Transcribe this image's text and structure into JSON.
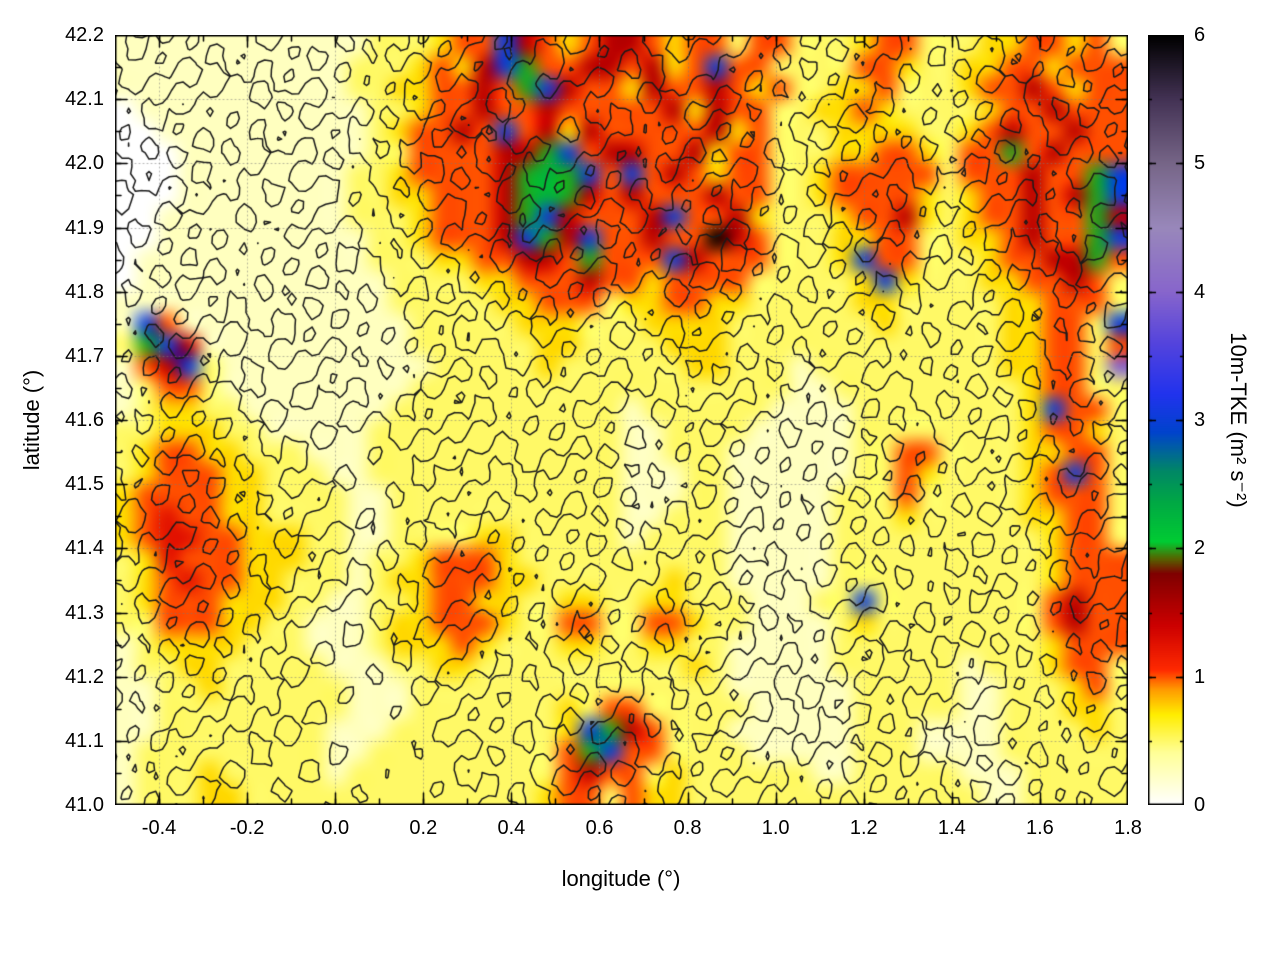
{
  "chart_data": {
    "type": "heatmap",
    "title": "",
    "xlabel": "longitude (°)",
    "ylabel": "latitude (°)",
    "x_range": [
      -0.5,
      1.8
    ],
    "y_range": [
      41.0,
      42.2
    ],
    "grid": "dotted-front",
    "x_ticks": {
      "values": [
        -0.4,
        -0.2,
        0.0,
        0.2,
        0.4,
        0.6,
        0.8,
        1.0,
        1.2,
        1.4,
        1.6,
        1.8
      ],
      "labels": [
        "-0.4",
        "-0.2",
        "0.0",
        "0.2",
        "0.4",
        "0.6",
        "0.8",
        "1.0",
        "1.2",
        "1.4",
        "1.6",
        "1.8"
      ],
      "minor_step": 0.1
    },
    "y_ticks": {
      "values": [
        41.0,
        41.1,
        41.2,
        41.3,
        41.4,
        41.5,
        41.6,
        41.7,
        41.8,
        41.9,
        42.0,
        42.1,
        42.2
      ],
      "labels": [
        "41.0",
        "41.1",
        "41.2",
        "41.3",
        "41.4",
        "41.5",
        "41.6",
        "41.7",
        "41.8",
        "41.9",
        "42.0",
        "42.1",
        "42.2"
      ],
      "minor_step": 0.05
    },
    "colorbar": {
      "label": "10m-TKE (m² s⁻²)",
      "min": 0,
      "max": 6,
      "tick_values": [
        0,
        1,
        2,
        3,
        4,
        5,
        6
      ],
      "tick_labels": [
        "0",
        "1",
        "2",
        "3",
        "4",
        "5",
        "6"
      ],
      "minor_step": 0.5,
      "stops": [
        [
          0.0,
          "#ffffff"
        ],
        [
          0.4,
          "#ffff99"
        ],
        [
          0.7,
          "#ffee00"
        ],
        [
          0.9,
          "#ff9900"
        ],
        [
          1.05,
          "#ff2a00"
        ],
        [
          1.4,
          "#cc0000"
        ],
        [
          1.8,
          "#800000"
        ],
        [
          1.92,
          "#556600"
        ],
        [
          2.05,
          "#00cc33"
        ],
        [
          2.35,
          "#00aa44"
        ],
        [
          2.6,
          "#008866"
        ],
        [
          2.9,
          "#0044cc"
        ],
        [
          3.2,
          "#2233ee"
        ],
        [
          3.6,
          "#5544dd"
        ],
        [
          4.0,
          "#8866cc"
        ],
        [
          4.5,
          "#9988bb"
        ],
        [
          5.0,
          "#776688"
        ],
        [
          5.5,
          "#443355"
        ],
        [
          6.0,
          "#000000"
        ]
      ]
    },
    "value_chars": "0123456789abcdefghijklmno",
    "value_scale": 0.25,
    "tke_grid": [
      "11111111111122234 4c643466434424422234422233 44342",
      "111111111112223436c844664634c4422224432233443444",
      "111111111112233446 48c64436446434223342223446 4344",
      "011111111111223446446444446364422334322223446444",
      "0011111111112344 64c4636444446342223333223464 4644",
      "00011111111122444466 8c466446344222334432448 46444",
      "000111111112234444689 8c4c46434422344444244 46448c",
      "000111111112233444689864644464422344443234 46468c",
      "0011111111122234446 8c64446c446322234463234 464486",
      "00111111111122344 46c86c44644o6422233442233 46448c",
      "0111111111112223344664844 4c644422 23c442223446684",
      "0111111111111222233444644344442222 23c32223344642",
      "111111111111122222334442334433222223322222334442",
      "1c41111111111122222333222333322222223222 2233442c",
      "28c6111111111122222233222233322222222222 22334424",
      "146c211111111112222232222223322212222222 2233442g",
      "124421111111112222222222222222221122222222234422",
      "12332211111112222222222212222221111222222223c442",
      "223332211111222222222222112222111112222222234432",
      "234433222111222222222222112221111112244222233442",
      "2344433222112222222222221112211111122432 22234c42",
      "344443322221122222222222111221111122242222234442",
      "345443322221122222222222112221111122232222233442",
      "345544333221122223322222122221111122222222223442",
      "235444333221223444322222222221111122222222223444",
      "234544332221233444332222223221111122222222223444",
      "2344433322112234433223322332221112 2c222222224644",
      "224443322111233444322442244322111123222222224644",
      "123333222111233343222332233221111122222222223444",
      "122332222211122332222222222321111122222212223442",
      "112232222221112222222222222221111112222211222342",
      "112222222221112222222324422222111112222211222332",
      "11222222221112222222 23c86422211111122211 11222232",
      "12222222221122222222 248c4422221111122211 11222222",
      "122232222212222222222464423222222112222211122222",
      "122233222222222222223442433222222222222221122222"
    ],
    "contour_levels": [
      0.34,
      0.44,
      0.54,
      0.64,
      0.74,
      0.84
    ],
    "elevation_grid": [
      [
        0.55,
        0.6,
        0.62,
        0.6,
        0.7,
        0.85,
        0.8,
        0.88,
        0.82,
        0.75,
        0.72,
        0.8,
        0.85
      ],
      [
        0.5,
        0.52,
        0.48,
        0.55,
        0.75,
        0.9,
        0.85,
        0.8,
        0.78,
        0.7,
        0.68,
        0.75,
        0.82
      ],
      [
        0.45,
        0.42,
        0.4,
        0.5,
        0.65,
        0.8,
        0.75,
        0.72,
        0.7,
        0.62,
        0.6,
        0.68,
        0.75
      ],
      [
        0.4,
        0.38,
        0.36,
        0.42,
        0.5,
        0.6,
        0.62,
        0.6,
        0.58,
        0.52,
        0.55,
        0.6,
        0.65
      ],
      [
        0.38,
        0.35,
        0.33,
        0.36,
        0.38,
        0.42,
        0.45,
        0.48,
        0.45,
        0.42,
        0.48,
        0.52,
        0.55
      ],
      [
        0.42,
        0.38,
        0.34,
        0.3,
        0.32,
        0.36,
        0.38,
        0.4,
        0.38,
        0.36,
        0.42,
        0.46,
        0.5
      ],
      [
        0.45,
        0.42,
        0.36,
        0.32,
        0.35,
        0.38,
        0.4,
        0.45,
        0.42,
        0.38,
        0.36,
        0.42,
        0.46
      ],
      [
        0.42,
        0.4,
        0.35,
        0.3,
        0.33,
        0.4,
        0.5,
        0.55,
        0.5,
        0.45,
        0.4,
        0.38,
        0.42
      ],
      [
        0.4,
        0.36,
        0.32,
        0.28,
        0.32,
        0.45,
        0.55,
        0.6,
        0.55,
        0.5,
        0.45,
        0.4,
        0.36
      ],
      [
        0.38,
        0.34,
        0.3,
        0.26,
        0.3,
        0.42,
        0.5,
        0.55,
        0.52,
        0.48,
        0.42,
        0.38,
        0.34
      ]
    ]
  },
  "layout_colors": {
    "contour_line": "#1a1a1a",
    "grid_line": "rgba(120,120,120,0.55)",
    "axis": "#000000"
  }
}
